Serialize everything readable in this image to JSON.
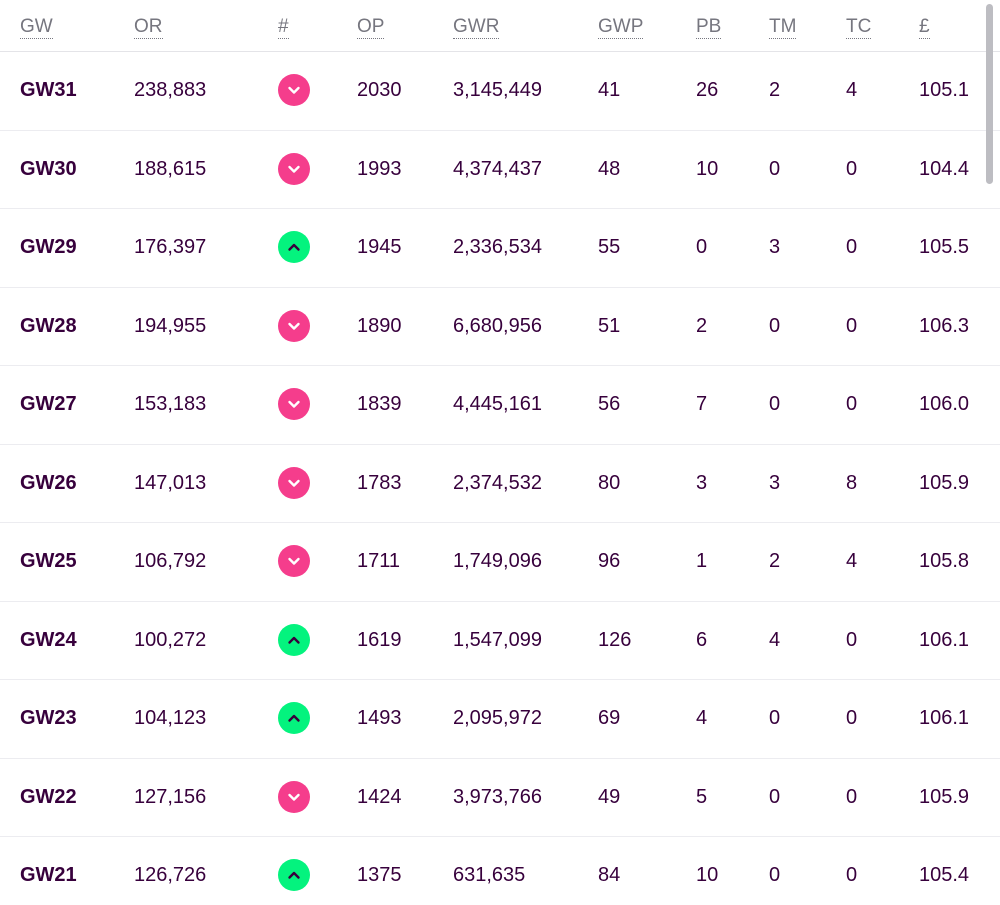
{
  "colors": {
    "text": "#37003c",
    "header_text": "#76767f",
    "down": "#f53d8c",
    "up": "#04f37e"
  },
  "header": {
    "gw": "GW",
    "or": "OR",
    "movement": "#",
    "op": "OP",
    "gwr": "GWR",
    "gwp": "GWP",
    "pb": "PB",
    "tm": "TM",
    "tc": "TC",
    "value": "£"
  },
  "rows": [
    {
      "gw": "GW31",
      "or": "238,883",
      "movement": "down",
      "op": "2030",
      "gwr": "3,145,449",
      "gwp": "41",
      "pb": "26",
      "tm": "2",
      "tc": "4",
      "value": "105.1"
    },
    {
      "gw": "GW30",
      "or": "188,615",
      "movement": "down",
      "op": "1993",
      "gwr": "4,374,437",
      "gwp": "48",
      "pb": "10",
      "tm": "0",
      "tc": "0",
      "value": "104.4"
    },
    {
      "gw": "GW29",
      "or": "176,397",
      "movement": "up",
      "op": "1945",
      "gwr": "2,336,534",
      "gwp": "55",
      "pb": "0",
      "tm": "3",
      "tc": "0",
      "value": "105.5"
    },
    {
      "gw": "GW28",
      "or": "194,955",
      "movement": "down",
      "op": "1890",
      "gwr": "6,680,956",
      "gwp": "51",
      "pb": "2",
      "tm": "0",
      "tc": "0",
      "value": "106.3"
    },
    {
      "gw": "GW27",
      "or": "153,183",
      "movement": "down",
      "op": "1839",
      "gwr": "4,445,161",
      "gwp": "56",
      "pb": "7",
      "tm": "0",
      "tc": "0",
      "value": "106.0"
    },
    {
      "gw": "GW26",
      "or": "147,013",
      "movement": "down",
      "op": "1783",
      "gwr": "2,374,532",
      "gwp": "80",
      "pb": "3",
      "tm": "3",
      "tc": "8",
      "value": "105.9"
    },
    {
      "gw": "GW25",
      "or": "106,792",
      "movement": "down",
      "op": "1711",
      "gwr": "1,749,096",
      "gwp": "96",
      "pb": "1",
      "tm": "2",
      "tc": "4",
      "value": "105.8"
    },
    {
      "gw": "GW24",
      "or": "100,272",
      "movement": "up",
      "op": "1619",
      "gwr": "1,547,099",
      "gwp": "126",
      "pb": "6",
      "tm": "4",
      "tc": "0",
      "value": "106.1"
    },
    {
      "gw": "GW23",
      "or": "104,123",
      "movement": "up",
      "op": "1493",
      "gwr": "2,095,972",
      "gwp": "69",
      "pb": "4",
      "tm": "0",
      "tc": "0",
      "value": "106.1"
    },
    {
      "gw": "GW22",
      "or": "127,156",
      "movement": "down",
      "op": "1424",
      "gwr": "3,973,766",
      "gwp": "49",
      "pb": "5",
      "tm": "0",
      "tc": "0",
      "value": "105.9"
    },
    {
      "gw": "GW21",
      "or": "126,726",
      "movement": "up",
      "op": "1375",
      "gwr": "631,635",
      "gwp": "84",
      "pb": "10",
      "tm": "0",
      "tc": "0",
      "value": "105.4"
    }
  ]
}
